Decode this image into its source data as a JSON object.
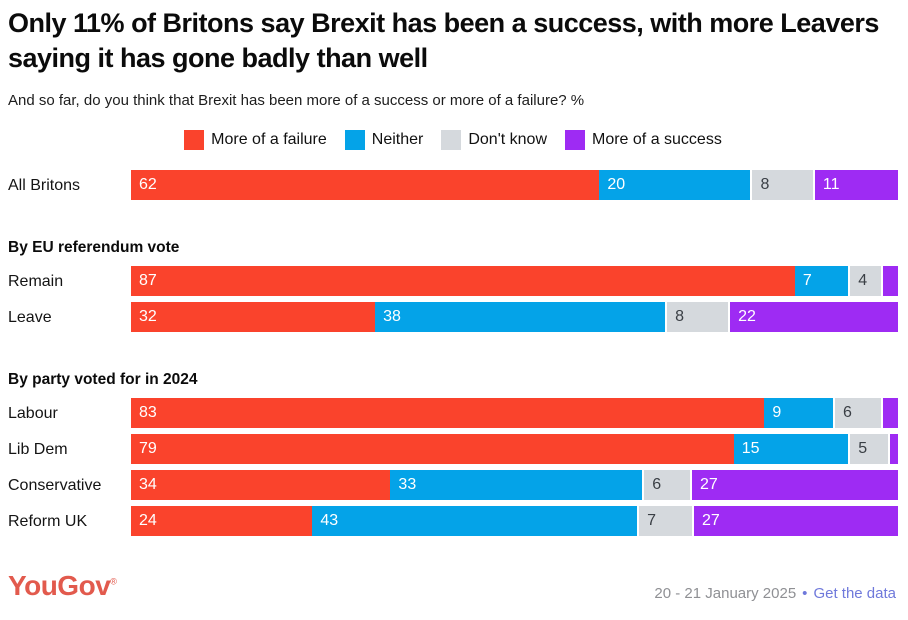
{
  "header": {
    "title": "Only 11% of Britons say Brexit has been a success, with more Leavers saying it has gone badly than well",
    "subtitle": "And so far, do you think that Brexit has been more of a success or more of a failure? %"
  },
  "chart_data": {
    "type": "bar",
    "stacked": true,
    "orientation": "horizontal",
    "unit": "%",
    "xlim": [
      0,
      100
    ],
    "legend_position": "top",
    "grid": false,
    "legend": [
      {
        "name": "failure",
        "label": "More of a failure",
        "color": "#FA432C",
        "text_color": "#ffffff"
      },
      {
        "name": "neither",
        "label": "Neither",
        "color": "#04A3E8",
        "text_color": "#ffffff"
      },
      {
        "name": "dont-know",
        "label": "Don't know",
        "color": "#D5D9DD",
        "text_color": "#3a3f45"
      },
      {
        "name": "success",
        "label": "More of a success",
        "color": "#9E2BF3",
        "text_color": "#ffffff"
      }
    ],
    "groups": [
      {
        "header": "",
        "rows": [
          {
            "label": "All Britons",
            "values": [
              62,
              20,
              8,
              11
            ],
            "labels": [
              "62",
              "20",
              "8",
              "11"
            ]
          }
        ]
      },
      {
        "header": "By EU referendum vote",
        "rows": [
          {
            "label": "Remain",
            "values": [
              87,
              7,
              4,
              2
            ],
            "labels": [
              "87",
              "7",
              "4",
              ""
            ]
          },
          {
            "label": "Leave",
            "values": [
              32,
              38,
              8,
              22
            ],
            "labels": [
              "32",
              "38",
              "8",
              "22"
            ]
          }
        ]
      },
      {
        "header": "By party voted for in 2024",
        "rows": [
          {
            "label": "Labour",
            "values": [
              83,
              9,
              6,
              2
            ],
            "labels": [
              "83",
              "9",
              "6",
              ""
            ]
          },
          {
            "label": "Lib Dem",
            "values": [
              79,
              15,
              5,
              1
            ],
            "labels": [
              "79",
              "15",
              "5",
              ""
            ]
          },
          {
            "label": "Conservative",
            "values": [
              34,
              33,
              6,
              27
            ],
            "labels": [
              "34",
              "33",
              "6",
              "27"
            ]
          },
          {
            "label": "Reform UK",
            "values": [
              24,
              43,
              7,
              27
            ],
            "labels": [
              "24",
              "43",
              "7",
              "27"
            ]
          }
        ]
      }
    ]
  },
  "footer": {
    "logo_text": "YouGov",
    "logo_mark": "®",
    "logo_color": "#E25A4D",
    "date_range": "20 - 21 January 2025",
    "separator": "•",
    "link_label": "Get the data",
    "link_color": "#6F79DB"
  }
}
